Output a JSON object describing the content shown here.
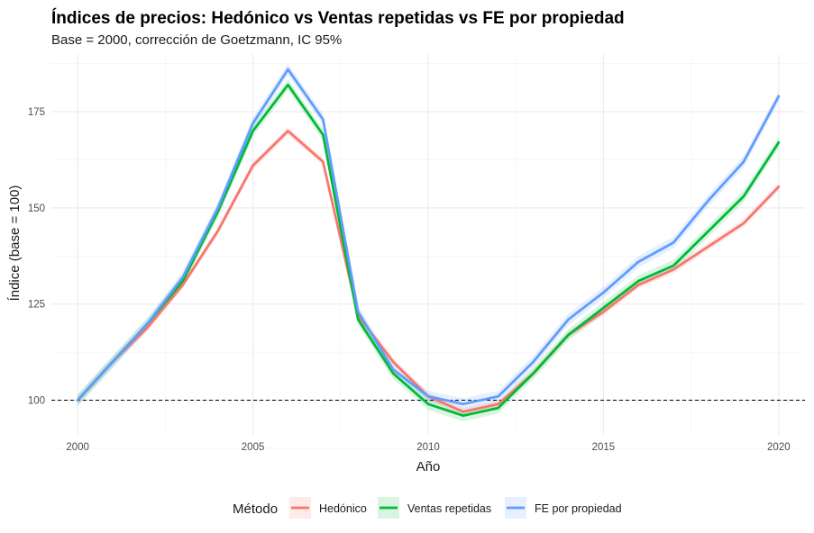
{
  "chart_data": {
    "type": "line",
    "title": "Índices de precios: Hedónico vs Ventas repetidas vs FE por propiedad",
    "subtitle": "Base = 2000, corrección de Goetzmann, IC 95%",
    "xlabel": "Año",
    "ylabel": "Índice (base = 100)",
    "xlim": [
      1999.25,
      2020.75
    ],
    "ylim": [
      91,
      190
    ],
    "x_ticks": [
      2000,
      2005,
      2010,
      2015,
      2020
    ],
    "x_tick_labels": [
      "2000",
      "2005",
      "2010",
      "2015",
      "2020"
    ],
    "y_ticks": [
      100,
      125,
      150,
      175
    ],
    "y_tick_labels": [
      "100",
      "125",
      "150",
      "175"
    ],
    "reference_line": {
      "y": 100,
      "style": "dashed",
      "color": "#000000"
    },
    "grid": true,
    "legend": {
      "title": "Método",
      "position": "bottom"
    },
    "x": [
      2000,
      2001,
      2002,
      2003,
      2004,
      2005,
      2006,
      2007,
      2008,
      2009,
      2010,
      2011,
      2012,
      2013,
      2014,
      2015,
      2016,
      2017,
      2018,
      2019,
      2020
    ],
    "series": [
      {
        "name": "Hedónico",
        "color": "#F8766D",
        "values": [
          100,
          110,
          119,
          130,
          144,
          161,
          170,
          162,
          122,
          110,
          101,
          97,
          99,
          107,
          117,
          123,
          130,
          134,
          140,
          146,
          155.5
        ],
        "ci_halfwidth": 1.0
      },
      {
        "name": "Ventas repetidas",
        "color": "#00BA38",
        "values": [
          100,
          110,
          120,
          131,
          149,
          170,
          182,
          169,
          121,
          107,
          99,
          96,
          98,
          107,
          117,
          124,
          131,
          135,
          144,
          153,
          167
        ],
        "ci_halfwidth": 1.5
      },
      {
        "name": "FE por propiedad",
        "color": "#619CFF",
        "values": [
          100,
          110,
          120,
          132,
          150,
          172,
          186,
          173,
          123,
          108,
          101,
          99,
          101,
          110,
          121,
          128,
          136,
          141,
          152,
          162,
          179
        ],
        "ci_halfwidth": 1.5
      }
    ]
  }
}
